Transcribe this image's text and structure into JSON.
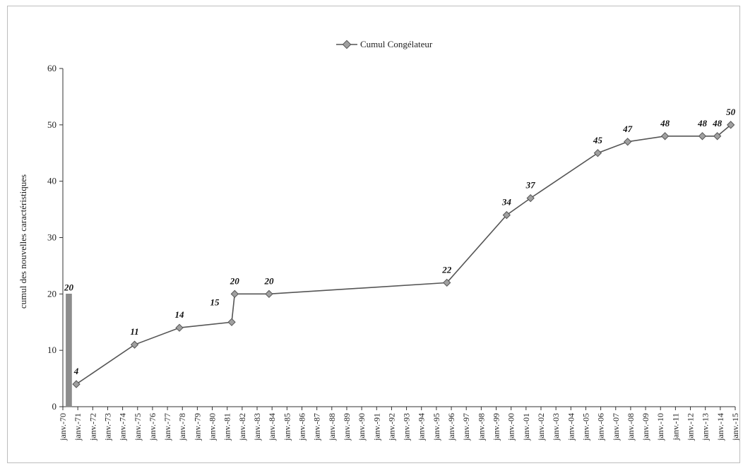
{
  "chart_data": {
    "type": "line",
    "legend": {
      "position": "top-center"
    },
    "ylabel": "cumul des nouvelles caractéristiques",
    "ylim": [
      0,
      60
    ],
    "yticks": [
      0,
      10,
      20,
      30,
      40,
      50,
      60
    ],
    "x_tick_labels": [
      "janv.-70",
      "janv.-71",
      "janv.-72",
      "janv.-73",
      "janv.-74",
      "janv.-75",
      "janv.-76",
      "janv.-77",
      "janv.-78",
      "janv.-79",
      "janv.-80",
      "janv.-81",
      "janv.-82",
      "janv.-83",
      "janv.-84",
      "janv.-85",
      "janv.-86",
      "janv.-87",
      "janv.-88",
      "janv.-89",
      "janv.-90",
      "janv.-91",
      "janv.-92",
      "janv.-93",
      "janv.-94",
      "janv.-95",
      "janv.-96",
      "janv.-97",
      "janv.-98",
      "janv.-99",
      "janv.-00",
      "janv.-01",
      "janv.-02",
      "janv.-03",
      "janv.-04",
      "janv.-05",
      "janv.-06",
      "janv.-07",
      "janv.-08",
      "janv.-09",
      "janv.-10",
      "janv.-11",
      "janv.-12",
      "janv.-13",
      "janv.-14",
      "janv.-15"
    ],
    "xlim": [
      1970,
      2015
    ],
    "grid": false,
    "series": [
      {
        "name": "Cumul Congélateur",
        "color": "#555555",
        "marker_color": "#a0a0a0",
        "points": [
          {
            "x": 1970.9,
            "y": 4,
            "label": "4"
          },
          {
            "x": 1974.8,
            "y": 11,
            "label": "11"
          },
          {
            "x": 1977.8,
            "y": 14,
            "label": "14"
          },
          {
            "x": 1981.3,
            "y": 15,
            "label": "15"
          },
          {
            "x": 1981.5,
            "y": 20,
            "label": "20"
          },
          {
            "x": 1983.8,
            "y": 20,
            "label": "20"
          },
          {
            "x": 1995.7,
            "y": 22,
            "label": "22"
          },
          {
            "x": 1999.7,
            "y": 34,
            "label": "34"
          },
          {
            "x": 2001.3,
            "y": 37,
            "label": "37"
          },
          {
            "x": 2005.8,
            "y": 45,
            "label": "45"
          },
          {
            "x": 2007.8,
            "y": 47,
            "label": "47"
          },
          {
            "x": 2010.3,
            "y": 48,
            "label": "48"
          },
          {
            "x": 2012.8,
            "y": 48,
            "label": "48"
          },
          {
            "x": 2013.8,
            "y": 48,
            "label": "48"
          },
          {
            "x": 2014.7,
            "y": 50,
            "label": "50"
          }
        ]
      }
    ],
    "bars": [
      {
        "x": 1970.4,
        "value": 20,
        "label": "20",
        "color": "#8c8c8c"
      }
    ]
  }
}
